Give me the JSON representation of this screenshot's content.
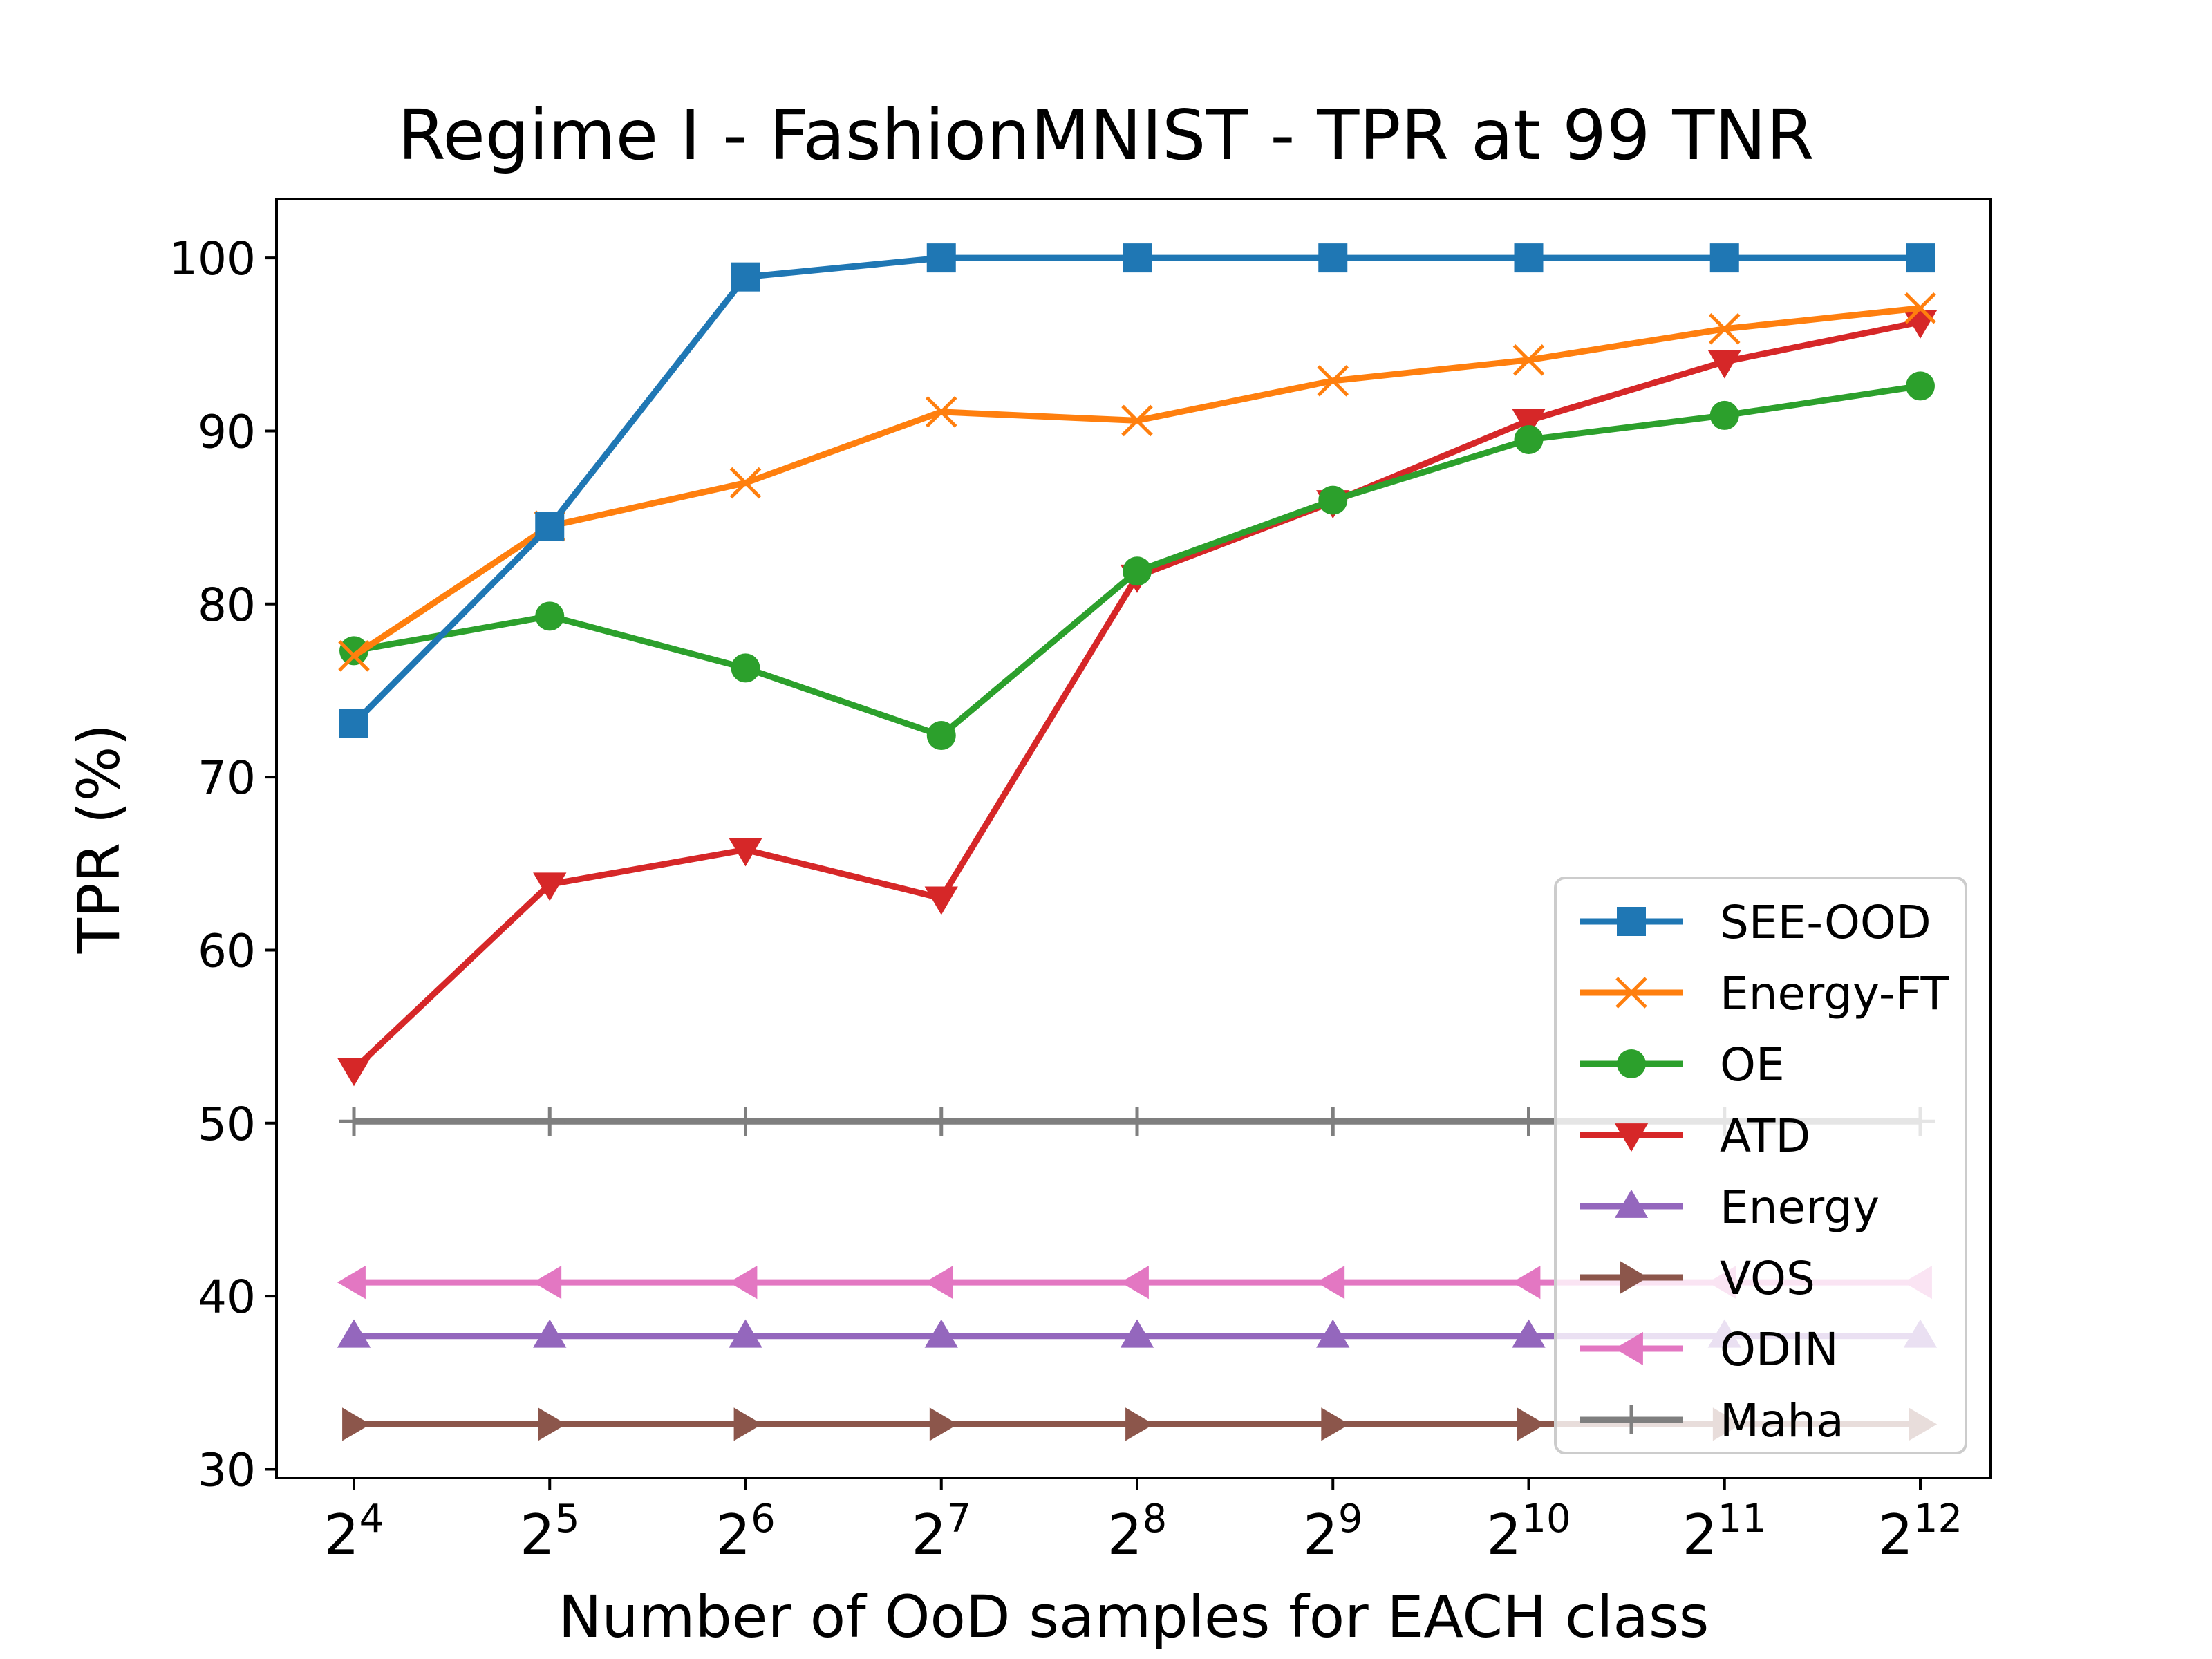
{
  "chart_data": {
    "type": "line",
    "title": "Regime I - FashionMNIST - TPR at 99 TNR",
    "xlabel": "Number of OoD samples for EACH class",
    "ylabel": "TPR (%)",
    "x_base": "2",
    "x_exponents": [
      "4",
      "5",
      "6",
      "7",
      "8",
      "9",
      "10",
      "11",
      "12"
    ],
    "x_scale": "log2",
    "ylim": [
      29.5,
      103.4
    ],
    "yticks": [
      30,
      40,
      50,
      60,
      70,
      80,
      90,
      100
    ],
    "grid": false,
    "legend_position": "lower right",
    "series": [
      {
        "name": "SEE-OOD",
        "color": "#1f77b4",
        "marker": "square",
        "values": [
          73.1,
          84.5,
          98.9,
          100.0,
          100.0,
          100.0,
          100.0,
          100.0,
          100.0
        ]
      },
      {
        "name": "Energy-FT",
        "color": "#ff7f0e",
        "marker": "x",
        "values": [
          77.0,
          84.5,
          87.0,
          91.1,
          90.6,
          92.9,
          94.1,
          95.9,
          97.1
        ]
      },
      {
        "name": "OE",
        "color": "#2ca02c",
        "marker": "circle",
        "values": [
          77.3,
          79.3,
          76.3,
          72.4,
          81.9,
          86.0,
          89.5,
          90.9,
          92.6
        ]
      },
      {
        "name": "ATD",
        "color": "#d62728",
        "marker": "triangle-down",
        "values": [
          53.1,
          63.8,
          65.8,
          63.0,
          81.6,
          85.9,
          90.6,
          94.0,
          96.3
        ]
      },
      {
        "name": "Energy",
        "color": "#9467bd",
        "marker": "triangle-up",
        "values": [
          37.7,
          37.7,
          37.7,
          37.7,
          37.7,
          37.7,
          37.7,
          37.7,
          37.7
        ]
      },
      {
        "name": "VOS",
        "color": "#8c564b",
        "marker": "triangle-right",
        "values": [
          32.6,
          32.6,
          32.6,
          32.6,
          32.6,
          32.6,
          32.6,
          32.6,
          32.6
        ]
      },
      {
        "name": "ODIN",
        "color": "#e377c2",
        "marker": "triangle-left",
        "values": [
          40.8,
          40.8,
          40.8,
          40.8,
          40.8,
          40.8,
          40.8,
          40.8,
          40.8
        ]
      },
      {
        "name": "Maha",
        "color": "#7f7f7f",
        "marker": "plus",
        "values": [
          50.1,
          50.1,
          50.1,
          50.1,
          50.1,
          50.1,
          50.1,
          50.1,
          50.1
        ]
      }
    ]
  }
}
